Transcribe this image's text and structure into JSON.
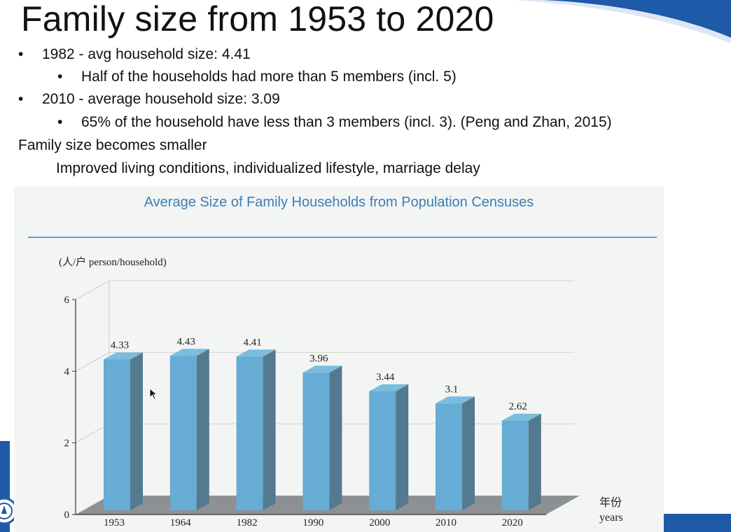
{
  "slide": {
    "title": "Family size from 1953 to 2020",
    "bullets": [
      {
        "level": 1,
        "text": "1982 - avg household size: 4.41"
      },
      {
        "level": 2,
        "text": "Half of the households had more than 5 members (incl. 5)"
      },
      {
        "level": 1,
        "text": "2010 - average household size: 3.09"
      },
      {
        "level": 2,
        "text": "65% of the household have less than 3 members (incl. 3). (Peng and Zhan, 2015)"
      }
    ],
    "note": "Family size becomes smaller",
    "note_detail": "Improved living conditions, individualized lifestyle, marriage delay",
    "bullet_glyph": "•"
  },
  "colors": {
    "bar_front": "#66acd4",
    "bar_side": "#537a8e",
    "bar_top": "#7bbdde",
    "floor": "#8e9193",
    "title_blue": "#3c7fb4",
    "accent_blue": "#1f5aa8"
  },
  "chart_data": {
    "type": "bar",
    "title": "Average Size of Family Households from Population Censuses",
    "ylabel": "(人/户 person/household)",
    "xlabel_cn": "年份",
    "xlabel": "years",
    "categories": [
      "1953",
      "1964",
      "1982",
      "1990",
      "2000",
      "2010",
      "2020"
    ],
    "values": [
      4.33,
      4.43,
      4.41,
      3.96,
      3.44,
      3.1,
      2.62
    ],
    "value_labels": [
      "4.33",
      "4.43",
      "4.41",
      "3.96",
      "3.44",
      "3.1",
      "2.62"
    ],
    "ylim": [
      0,
      6
    ],
    "yticks": [
      0,
      2,
      4,
      6
    ],
    "grid": true,
    "style": "3d",
    "legend": "none"
  },
  "icons": {
    "cursor": "mouse-pointer-icon",
    "emblem": "university-emblem-icon"
  }
}
